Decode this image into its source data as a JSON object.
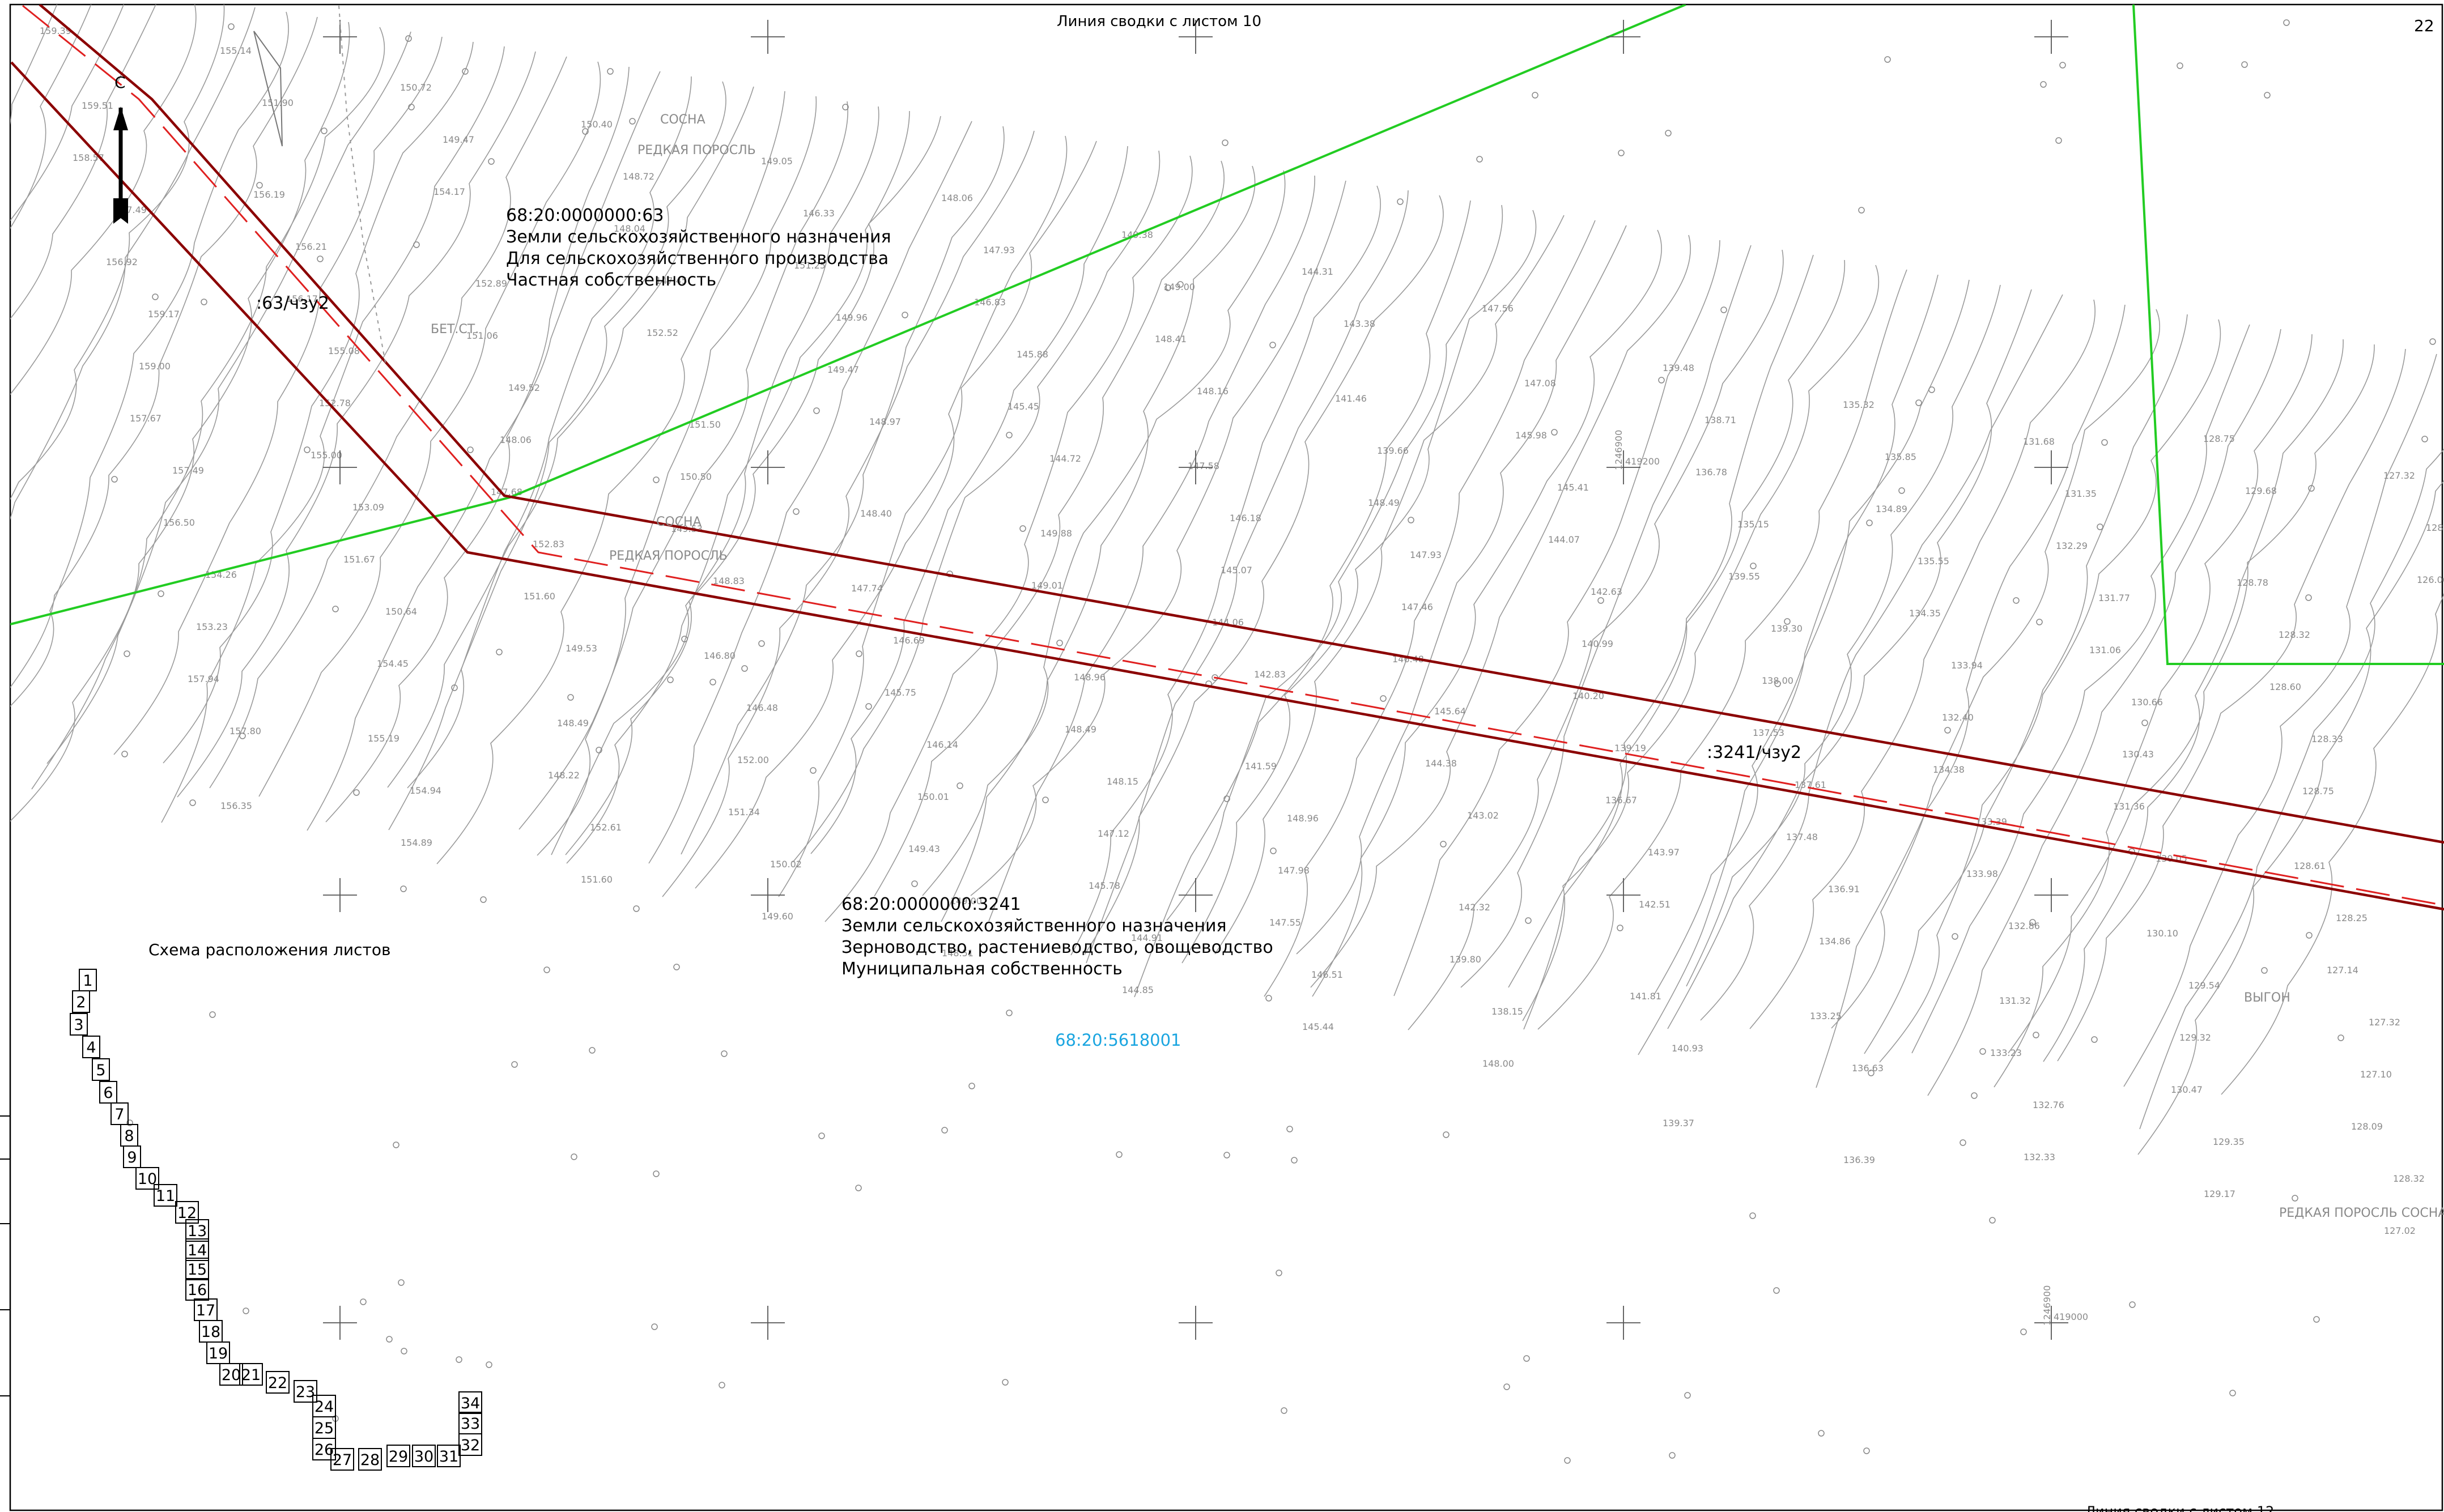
{
  "sheet_number": "22",
  "junction_top": "Линия сводки с листом 10",
  "junction_bottom": "Линия сводки с листом 12",
  "colors": {
    "boundary": "#8b0000",
    "zone_dash": "#e02020",
    "parcel_border": "#22cc22",
    "contour": "#8a8a8a",
    "quarter_label": "#1aa5e0"
  },
  "parcels": [
    {
      "id": "68:20:0000000:63",
      "category": "Земли сельскохозяйственного назначения",
      "use": "Для сельскохозяйственного производства",
      "ownership": "Частная собственность",
      "zone": ":63/чзу2"
    },
    {
      "id": "68:20:0000000:3241",
      "category": "Земли сельскохозяйственного назначения",
      "use": "Зерноводство, растениеводство, овощеводство",
      "ownership": "Муниципальная собственность",
      "zone": ":3241/чзу2"
    }
  ],
  "cadastral_quarter": "68:20:5618001",
  "north_arrow": "north-arrow-icon",
  "terrain_labels": [
    "СОСНА",
    "РЕДКАЯ ПОРОСЛЬ",
    "БЕТ.СТ.",
    "СОСНА",
    "РЕДКАЯ ПОРОСЛЬ",
    "ВЫГОН",
    "РЕДКАЯ ПОРОСЛЬ СОСНА-3"
  ],
  "grid_labels": [
    "1246900",
    "419200",
    "1246900",
    "419000"
  ],
  "elevations": [
    "159.39",
    "159.51",
    "158.57",
    "157.49",
    "156.92",
    "159.17",
    "159.00",
    "157.67",
    "157.49",
    "156.50",
    "154.26",
    "153.23",
    "157.94",
    "157.80",
    "156.35",
    "155.14",
    "151.90",
    "156.19",
    "156.21",
    "156.17",
    "155.08",
    "152.78",
    "155.00",
    "153.09",
    "151.67",
    "150.64",
    "154.45",
    "155.19",
    "154.94",
    "154.89",
    "150.72",
    "149.47",
    "154.17",
    "152.89",
    "151.06",
    "149.52",
    "148.06",
    "147.68",
    "152.83",
    "151.60",
    "149.53",
    "148.49",
    "148.22",
    "152.61",
    "151.60",
    "150.40",
    "148.72",
    "148.04",
    "147.45",
    "152.52",
    "151.50",
    "150.50",
    "149.53",
    "148.83",
    "146.80",
    "146.48",
    "152.00",
    "151.34",
    "150.02",
    "149.60",
    "149.05",
    "146.33",
    "151.25",
    "149.96",
    "149.47",
    "148.97",
    "148.40",
    "147.74",
    "146.69",
    "145.75",
    "146.14",
    "150.01",
    "149.43",
    "149.00",
    "148.51",
    "148.06",
    "147.93",
    "146.83",
    "145.88",
    "145.45",
    "144.72",
    "149.88",
    "149.01",
    "148.96",
    "148.49",
    "148.15",
    "147.12",
    "145.78",
    "144.91",
    "144.85",
    "149.38",
    "149.00",
    "148.41",
    "148.16",
    "147.58",
    "146.18",
    "145.07",
    "144.06",
    "142.83",
    "141.59",
    "148.96",
    "147.98",
    "147.55",
    "146.51",
    "145.44",
    "144.31",
    "143.38",
    "141.46",
    "139.66",
    "148.49",
    "147.93",
    "147.46",
    "146.48",
    "145.64",
    "144.38",
    "143.02",
    "142.32",
    "139.80",
    "138.15",
    "148.00",
    "147.56",
    "147.08",
    "145.98",
    "145.41",
    "144.07",
    "142.63",
    "140.99",
    "140.20",
    "139.19",
    "136.67",
    "143.97",
    "142.51",
    "141.81",
    "140.93",
    "139.37",
    "139.48",
    "138.71",
    "136.78",
    "135.15",
    "139.55",
    "139.30",
    "138.00",
    "137.53",
    "137.61",
    "137.48",
    "136.91",
    "134.86",
    "133.25",
    "136.63",
    "136.39",
    "135.32",
    "135.85",
    "134.89",
    "135.55",
    "134.35",
    "133.94",
    "132.40",
    "134.38",
    "133.39",
    "133.98",
    "132.86",
    "131.32",
    "133.23",
    "132.76",
    "132.33",
    "131.68",
    "131.35",
    "132.29",
    "131.77",
    "131.06",
    "130.66",
    "130.43",
    "131.36",
    "130.05",
    "130.10",
    "129.54",
    "129.32",
    "130.47",
    "129.35",
    "129.17",
    "128.75",
    "129.68",
    "128.78",
    "128.32",
    "128.60",
    "128.33",
    "128.75",
    "128.61",
    "128.25",
    "127.14",
    "127.32",
    "127.10",
    "128.09",
    "128.32",
    "127.02",
    "127.32",
    "128.82",
    "126.06"
  ],
  "sheet_index": {
    "title": "Схема расположения листов",
    "sheets": [
      "1",
      "2",
      "3",
      "4",
      "5",
      "6",
      "7",
      "8",
      "9",
      "10",
      "11",
      "12",
      "13",
      "14",
      "15",
      "16",
      "17",
      "18",
      "19",
      "20",
      "21",
      "22",
      "23",
      "24",
      "25",
      "26",
      "27",
      "28",
      "29",
      "30",
      "31",
      "32",
      "33",
      "34"
    ]
  }
}
